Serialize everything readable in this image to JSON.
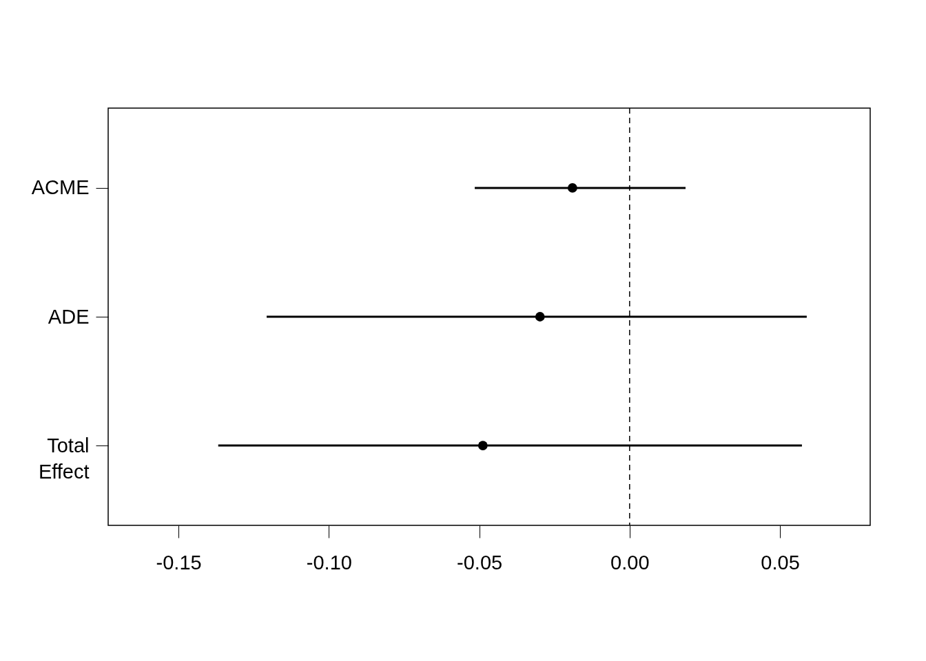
{
  "chart_data": {
    "type": "scatter",
    "orientation": "horizontal",
    "categories": [
      "ACME",
      "ADE",
      "Total Effect"
    ],
    "values": [
      -0.019,
      -0.0298,
      -0.0488
    ],
    "errors": [
      [
        -0.0515,
        0.0186
      ],
      [
        -0.1207,
        0.0589
      ],
      [
        -0.1368,
        0.0573
      ]
    ],
    "color": "#000000",
    "marker": "circle",
    "grid": false,
    "xlim": [
      -0.1734,
      0.08
    ],
    "xticks": [
      {
        "value": -0.15,
        "label": "-0.15"
      },
      {
        "value": -0.1,
        "label": "-0.10"
      },
      {
        "value": -0.05,
        "label": "-0.05"
      },
      {
        "value": 0,
        "label": "0.00"
      },
      {
        "value": 0.05,
        "label": "0.05"
      }
    ],
    "ref_lines": [
      {
        "axis": "x",
        "value": 0,
        "line_style": "dashed",
        "color": "#000000"
      }
    ]
  }
}
